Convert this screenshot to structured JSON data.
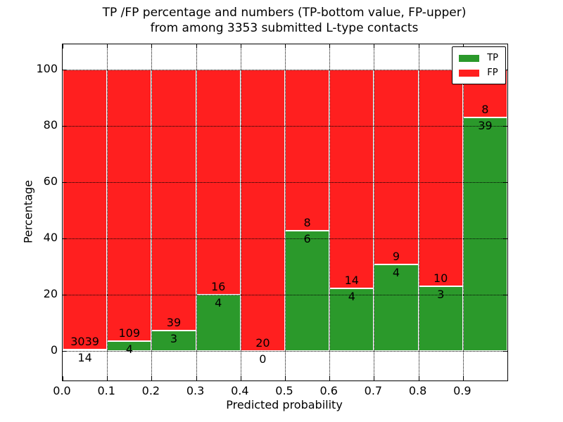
{
  "figure": {
    "title_line1": "TP /FP percentage and numbers (TP-bottom value, FP-upper)",
    "title_line2": "from among 3353 submitted L-type contacts",
    "xlabel": "Predicted probability",
    "ylabel": "Percentage"
  },
  "legend": {
    "items": [
      {
        "label": "TP",
        "color": "#2b992b"
      },
      {
        "label": "FP",
        "color": "#ff1f1f"
      }
    ]
  },
  "chart_data": {
    "type": "bar",
    "subtype": "stacked-normalized-percent",
    "title": "TP /FP percentage and numbers (TP-bottom value, FP-upper) from among 3353 submitted L-type contacts",
    "xlabel": "Predicted probability",
    "ylabel": "Percentage",
    "total_contacts": 3353,
    "xlim": [
      0.0,
      1.0
    ],
    "ylim": [
      -10.5,
      109
    ],
    "grid": "dotted, drawn over bars",
    "legend_position": "upper right",
    "x_tick_labels": [
      "0.0",
      "0.1",
      "0.2",
      "0.3",
      "0.4",
      "0.5",
      "0.6",
      "0.7",
      "0.8",
      "0.9"
    ],
    "y_tick_values": [
      0,
      20,
      40,
      60,
      80,
      100
    ],
    "y_tick_labels": [
      "0",
      "20",
      "40",
      "60",
      "80",
      "100"
    ],
    "categories": [
      "0.0-0.1",
      "0.1-0.2",
      "0.2-0.3",
      "0.3-0.4",
      "0.4-0.5",
      "0.5-0.6",
      "0.6-0.7",
      "0.7-0.8",
      "0.8-0.9",
      "0.9-1.0"
    ],
    "series": [
      {
        "name": "TP",
        "color": "#2b992b",
        "counts": [
          14,
          4,
          3,
          4,
          0,
          6,
          4,
          4,
          3,
          39
        ]
      },
      {
        "name": "FP",
        "color": "#ff1f1f",
        "counts": [
          3039,
          109,
          39,
          16,
          20,
          8,
          14,
          9,
          10,
          8
        ]
      }
    ],
    "tp_percent": [
      0.46,
      3.54,
      7.14,
      20.0,
      0.0,
      42.86,
      22.22,
      30.77,
      23.08,
      82.98
    ]
  }
}
